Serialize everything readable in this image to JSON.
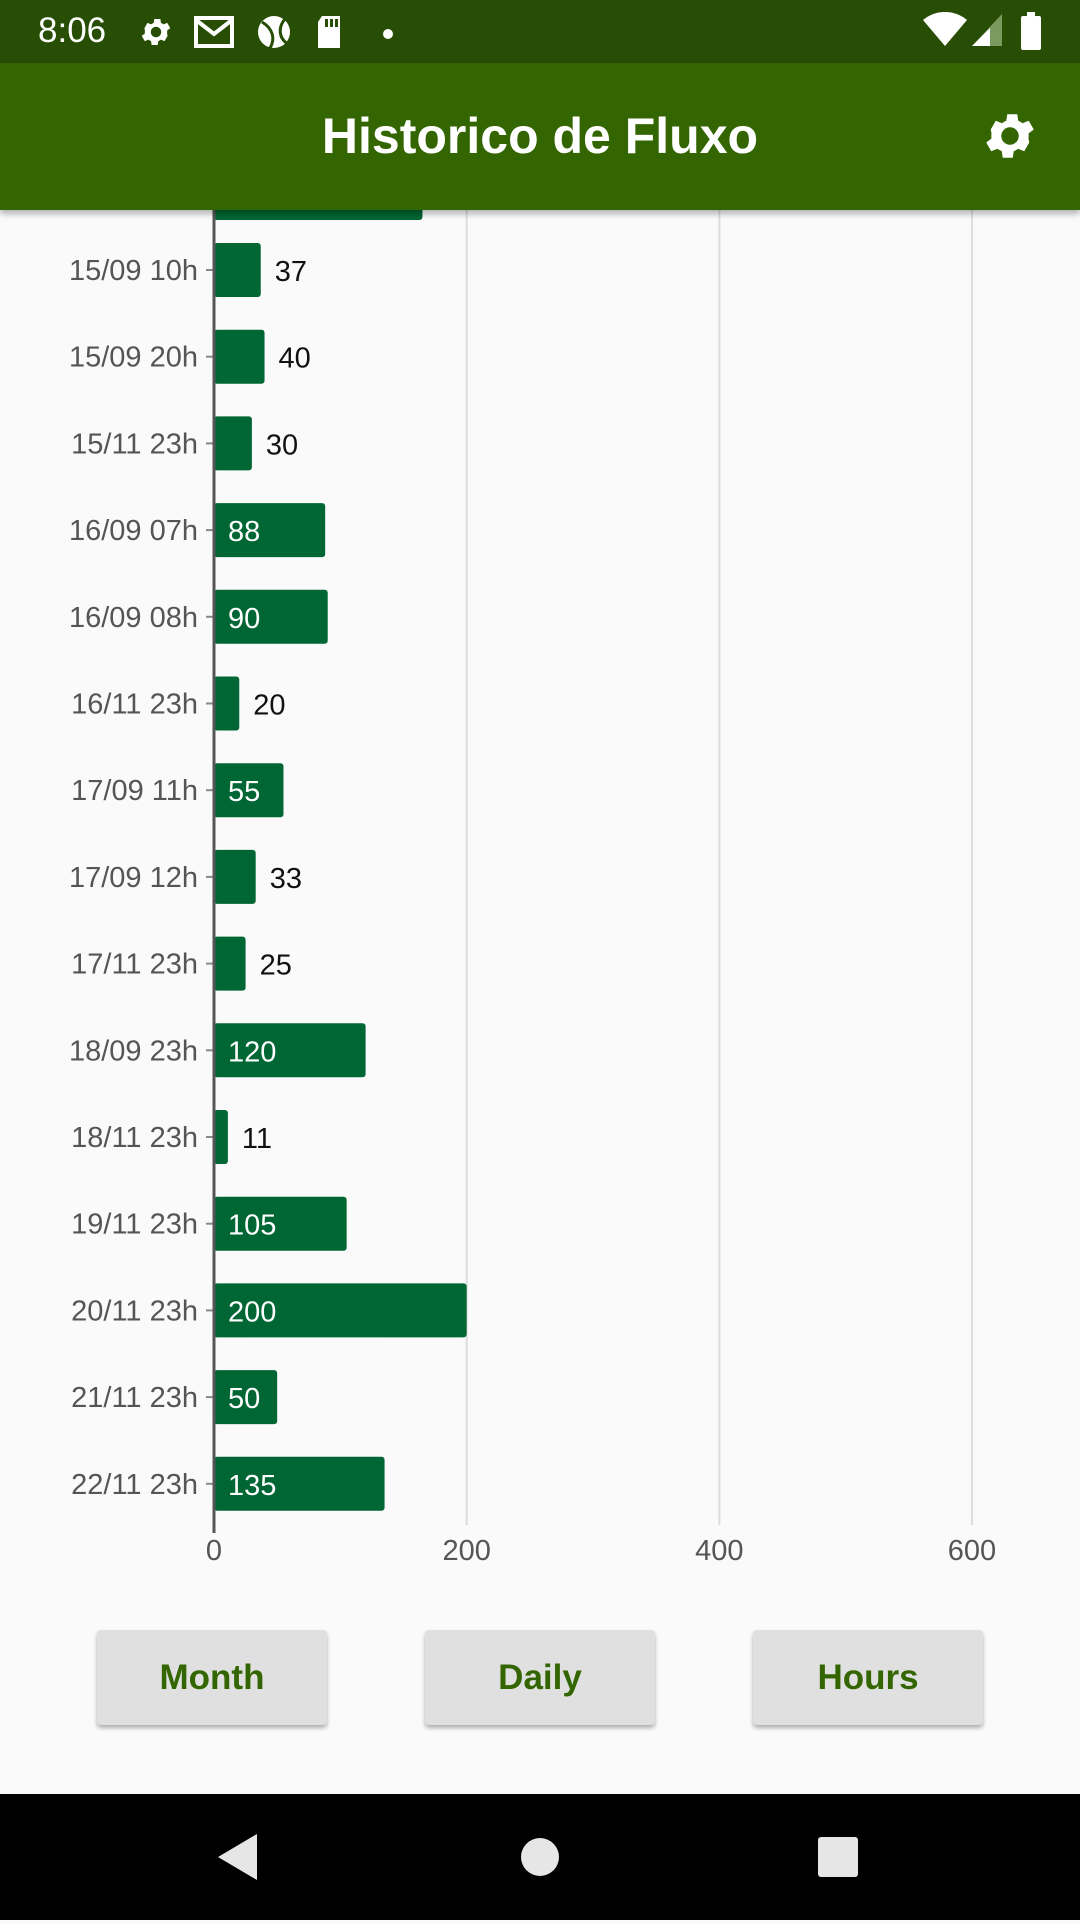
{
  "status_bar": {
    "time": "8:06",
    "left_icons": [
      "gear-icon",
      "gmail-icon",
      "ball-icon",
      "sd-card-icon",
      "dot-icon"
    ],
    "right_icons": [
      "wifi-icon",
      "signal-icon",
      "battery-icon"
    ]
  },
  "app_bar": {
    "title": "Historico de Fluxo",
    "settings_icon": "gear-icon",
    "background": "#336600"
  },
  "chart_data": {
    "type": "bar",
    "orientation": "horizontal",
    "categories": [
      "15/09 10h",
      "15/09 20h",
      "15/11 23h",
      "16/09 07h",
      "16/09 08h",
      "16/11 23h",
      "17/09 11h",
      "17/09 12h",
      "17/11 23h",
      "18/09 23h",
      "18/11 23h",
      "19/11 23h",
      "20/11 23h",
      "21/11 23h",
      "22/11 23h"
    ],
    "values": [
      37,
      40,
      30,
      88,
      90,
      20,
      55,
      33,
      25,
      120,
      11,
      105,
      200,
      50,
      135
    ],
    "value_labels": [
      "37",
      "40",
      "30",
      "88",
      "90",
      "20",
      "55",
      "33",
      "25",
      "120",
      "11",
      "105",
      "200",
      "50",
      "135"
    ],
    "xticks": [
      "0",
      "200",
      "400",
      "600"
    ],
    "xlim": [
      0,
      600
    ],
    "grid": true,
    "bar_color": "#006633"
  },
  "buttons": {
    "month": "Month",
    "daily": "Daily",
    "hours": "Hours"
  },
  "nav_bar": {
    "icons": [
      "back-icon",
      "home-icon",
      "recents-icon"
    ]
  }
}
